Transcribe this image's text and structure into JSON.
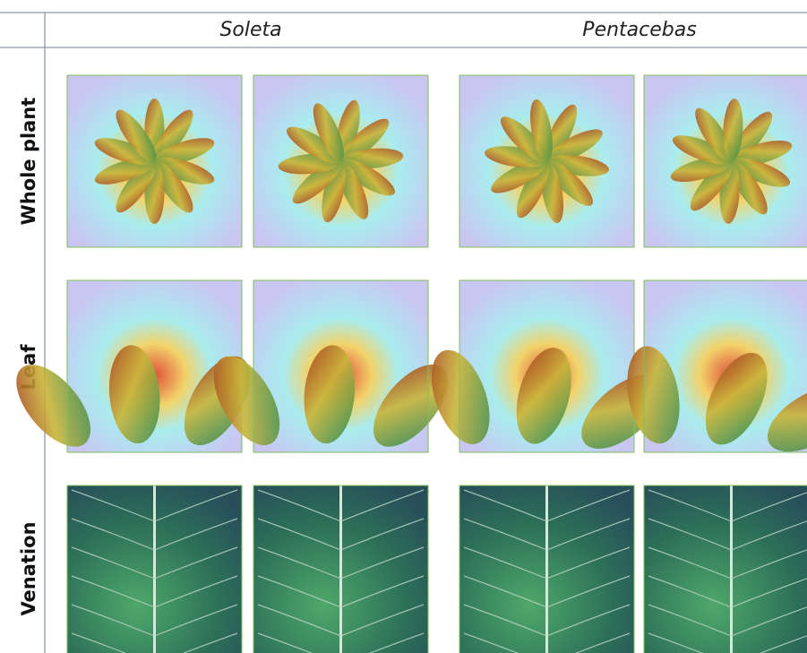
{
  "columns": [
    "Soleta",
    "Pentacebas"
  ],
  "rows": [
    "Whole plant",
    "Leaf",
    "Venation"
  ]
}
